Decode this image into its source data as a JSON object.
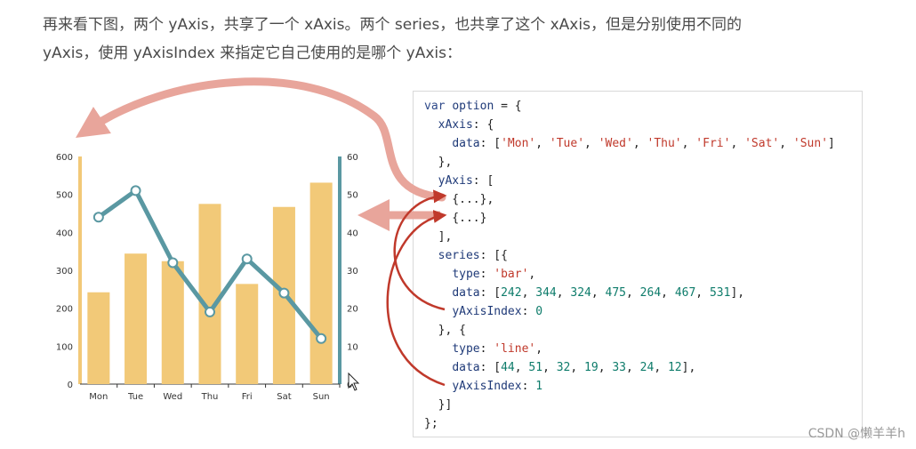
{
  "intro": {
    "line1": "再来看下图，两个 yAxis，共享了一个 xAxis。两个 series，也共享了这个 xAxis，但是分别使用不同的",
    "line2": "yAxis，使用 yAxisIndex 来指定它自己使用的是哪个 yAxis："
  },
  "chart_data": {
    "type": "bar",
    "categories": [
      "Mon",
      "Tue",
      "Wed",
      "Thu",
      "Fri",
      "Sat",
      "Sun"
    ],
    "series": [
      {
        "type": "bar",
        "values": [
          242,
          344,
          324,
          475,
          264,
          467,
          531
        ],
        "yAxisIndex": 0,
        "color": "#f2c978"
      },
      {
        "type": "line",
        "values": [
          44,
          51,
          32,
          19,
          33,
          24,
          12
        ],
        "yAxisIndex": 1,
        "color": "#5a98a2"
      }
    ],
    "y_axes": [
      {
        "side": "left",
        "ylim": [
          0,
          600
        ],
        "ticks": [
          "0",
          "100",
          "200",
          "300",
          "400",
          "500",
          "600"
        ],
        "color": "#f2c978"
      },
      {
        "side": "right",
        "ylim": [
          0,
          60
        ],
        "ticks": [
          "0",
          "10",
          "20",
          "30",
          "40",
          "50",
          "60"
        ],
        "color": "#5a98a2"
      }
    ],
    "grid": false
  },
  "code": {
    "lines": [
      [
        [
          "kw",
          "var "
        ],
        [
          "prop",
          "option"
        ],
        [
          "punc",
          " = {"
        ]
      ],
      [
        [
          "punc",
          "  "
        ],
        [
          "prop",
          "xAxis"
        ],
        [
          "punc",
          ": {"
        ]
      ],
      [
        [
          "punc",
          "    "
        ],
        [
          "prop",
          "data"
        ],
        [
          "punc",
          ": ["
        ],
        [
          "str",
          "'Mon'"
        ],
        [
          "punc",
          ", "
        ],
        [
          "str",
          "'Tue'"
        ],
        [
          "punc",
          ", "
        ],
        [
          "str",
          "'Wed'"
        ],
        [
          "punc",
          ", "
        ],
        [
          "str",
          "'Thu'"
        ],
        [
          "punc",
          ", "
        ],
        [
          "str",
          "'Fri'"
        ],
        [
          "punc",
          ", "
        ],
        [
          "str",
          "'Sat'"
        ],
        [
          "punc",
          ", "
        ],
        [
          "str",
          "'Sun'"
        ],
        [
          "punc",
          "]"
        ]
      ],
      [
        [
          "punc",
          "  },"
        ]
      ],
      [
        [
          "punc",
          "  "
        ],
        [
          "prop",
          "yAxis"
        ],
        [
          "punc",
          ": ["
        ]
      ],
      [
        [
          "punc",
          "    {...},"
        ]
      ],
      [
        [
          "punc",
          "    {...}"
        ]
      ],
      [
        [
          "punc",
          "  ],"
        ]
      ],
      [
        [
          "punc",
          "  "
        ],
        [
          "prop",
          "series"
        ],
        [
          "punc",
          ": [{"
        ]
      ],
      [
        [
          "punc",
          "    "
        ],
        [
          "prop",
          "type"
        ],
        [
          "punc",
          ": "
        ],
        [
          "str",
          "'bar'"
        ],
        [
          "punc",
          ","
        ]
      ],
      [
        [
          "punc",
          "    "
        ],
        [
          "prop",
          "data"
        ],
        [
          "punc",
          ": ["
        ],
        [
          "num",
          "242"
        ],
        [
          "punc",
          ", "
        ],
        [
          "num",
          "344"
        ],
        [
          "punc",
          ", "
        ],
        [
          "num",
          "324"
        ],
        [
          "punc",
          ", "
        ],
        [
          "num",
          "475"
        ],
        [
          "punc",
          ", "
        ],
        [
          "num",
          "264"
        ],
        [
          "punc",
          ", "
        ],
        [
          "num",
          "467"
        ],
        [
          "punc",
          ", "
        ],
        [
          "num",
          "531"
        ],
        [
          "punc",
          "],"
        ]
      ],
      [
        [
          "punc",
          "    "
        ],
        [
          "prop",
          "yAxisIndex"
        ],
        [
          "punc",
          ": "
        ],
        [
          "num",
          "0"
        ]
      ],
      [
        [
          "punc",
          "  }, {"
        ]
      ],
      [
        [
          "punc",
          "    "
        ],
        [
          "prop",
          "type"
        ],
        [
          "punc",
          ": "
        ],
        [
          "str",
          "'line'"
        ],
        [
          "punc",
          ","
        ]
      ],
      [
        [
          "punc",
          "    "
        ],
        [
          "prop",
          "data"
        ],
        [
          "punc",
          ": ["
        ],
        [
          "num",
          "44"
        ],
        [
          "punc",
          ", "
        ],
        [
          "num",
          "51"
        ],
        [
          "punc",
          ", "
        ],
        [
          "num",
          "32"
        ],
        [
          "punc",
          ", "
        ],
        [
          "num",
          "19"
        ],
        [
          "punc",
          ", "
        ],
        [
          "num",
          "33"
        ],
        [
          "punc",
          ", "
        ],
        [
          "num",
          "24"
        ],
        [
          "punc",
          ", "
        ],
        [
          "num",
          "12"
        ],
        [
          "punc",
          "],"
        ]
      ],
      [
        [
          "punc",
          "    "
        ],
        [
          "prop",
          "yAxisIndex"
        ],
        [
          "punc",
          ": "
        ],
        [
          "num",
          "1"
        ]
      ],
      [
        [
          "punc",
          "  }]"
        ]
      ],
      [
        [
          "punc",
          "};"
        ]
      ]
    ]
  },
  "annotation": {
    "arrow_color": "#e8a59b",
    "curve_color": "#c0392b"
  },
  "watermark": "CSDN @懒羊羊h"
}
